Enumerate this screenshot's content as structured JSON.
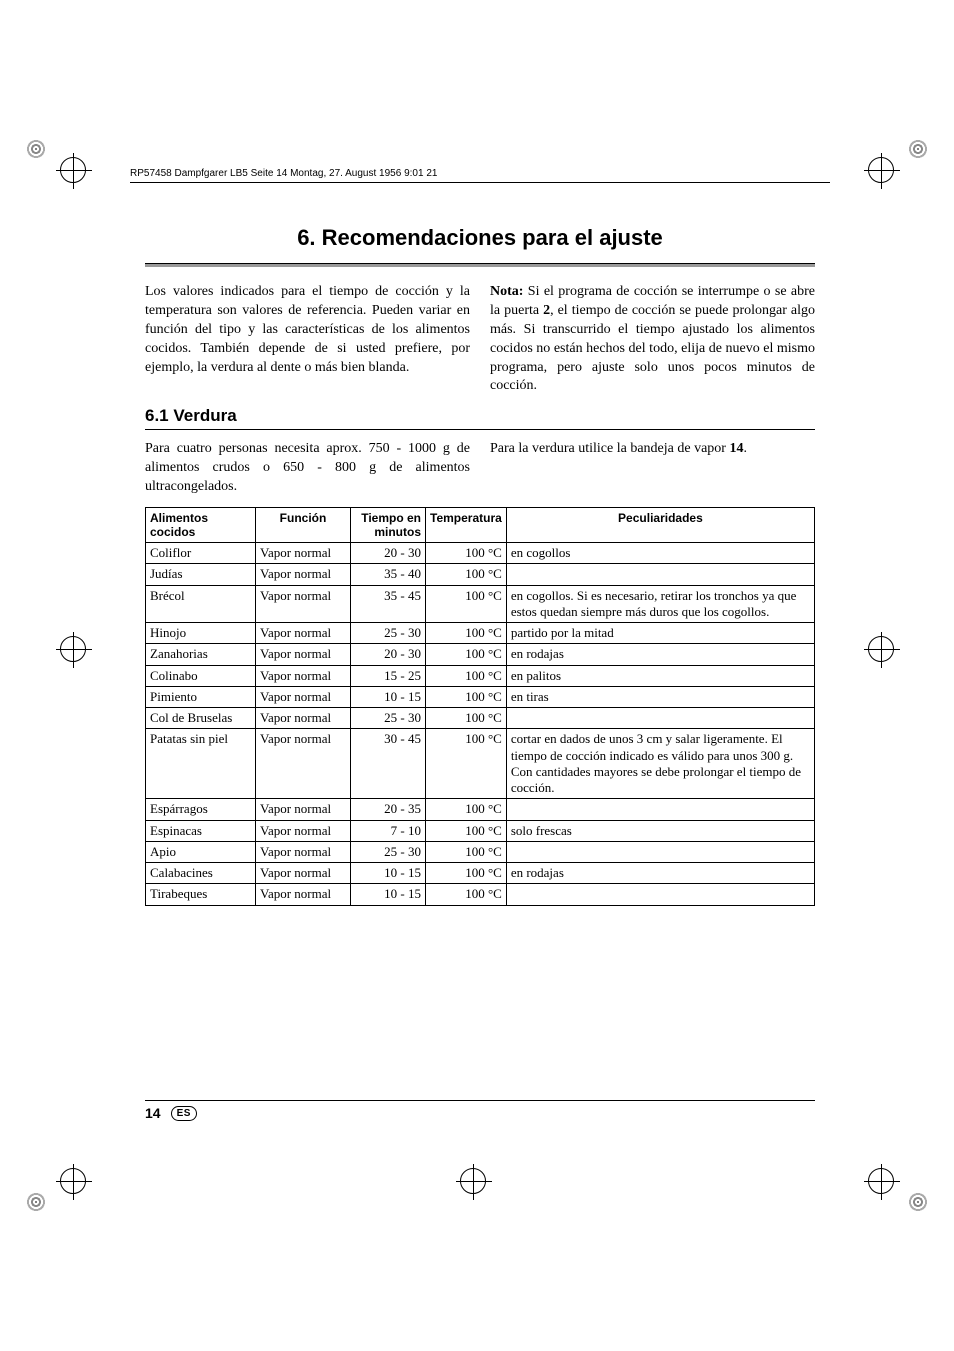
{
  "header_line": "RP57458 Dampfgarer LB5  Seite 14  Montag, 27. August 1956  9:01 21",
  "title": "6. Recomendaciones para el ajuste",
  "intro_left": "Los valores indicados para el tiempo de cocción y la temperatura son valores de referencia. Pueden variar en función del tipo y las características de los alimentos cocidos. También depende de si usted prefiere, por ejemplo, la verdura al dente o más bien blanda.",
  "intro_right_label": "Nota:",
  "intro_right_rest": " Si el programa de cocción se interrumpe o se abre la puerta ",
  "intro_right_bold2": "2",
  "intro_right_rest2": ", el tiempo de cocción se puede prolongar algo más. Si transcurrido el tiempo ajustado los alimentos cocidos no están hechos del todo, elija de nuevo el mismo programa, pero ajuste solo unos pocos minutos de cocción.",
  "subtitle": "6.1  Verdura",
  "sub_left": "Para cuatro personas necesita aprox. 750 - 1000 g de alimentos crudos o 650 - 800 g de alimentos ultracongelados.",
  "sub_right_a": "Para la verdura utilice la bandeja de vapor ",
  "sub_right_bold": "14",
  "sub_right_b": ".",
  "columns": [
    "Alimentos cocidos",
    "Función",
    "Tiempo en minutos",
    "Temperatura",
    "Peculiaridades"
  ],
  "rows": [
    [
      "Coliflor",
      "Vapor normal",
      "20 - 30",
      "100 °C",
      "en cogollos"
    ],
    [
      "Judías",
      "Vapor normal",
      "35 - 40",
      "100 °C",
      ""
    ],
    [
      "Brécol",
      "Vapor normal",
      "35 - 45",
      "100 °C",
      "en cogollos. Si es necesario, retirar los tronchos ya que estos quedan siempre más duros que los cogollos."
    ],
    [
      "Hinojo",
      "Vapor normal",
      "25 - 30",
      "100 °C",
      "partido por la mitad"
    ],
    [
      "Zanahorias",
      "Vapor normal",
      "20 - 30",
      "100 °C",
      "en rodajas"
    ],
    [
      "Colinabo",
      "Vapor normal",
      "15 - 25",
      "100 °C",
      "en palitos"
    ],
    [
      "Pimiento",
      "Vapor normal",
      "10 - 15",
      "100 °C",
      "en tiras"
    ],
    [
      "Col de Bruselas",
      "Vapor normal",
      "25 - 30",
      "100 °C",
      ""
    ],
    [
      "Patatas sin piel",
      "Vapor normal",
      "30 - 45",
      "100 °C",
      "cortar en dados de unos 3 cm y salar ligeramente. El tiempo de cocción indicado es válido para unos 300 g. Con cantidades mayores se debe prolongar el tiempo de cocción."
    ],
    [
      "Espárragos",
      "Vapor normal",
      "20 - 35",
      "100 °C",
      ""
    ],
    [
      "Espinacas",
      "Vapor normal",
      "7 - 10",
      "100 °C",
      "solo frescas"
    ],
    [
      "Apio",
      "Vapor normal",
      "25 - 30",
      "100 °C",
      ""
    ],
    [
      "Calabacines",
      "Vapor normal",
      "10 - 15",
      "100 °C",
      "en rodajas"
    ],
    [
      "Tirabeques",
      "Vapor normal",
      "10 - 15",
      "100 °C",
      ""
    ]
  ],
  "page_num": "14",
  "lang": "ES"
}
